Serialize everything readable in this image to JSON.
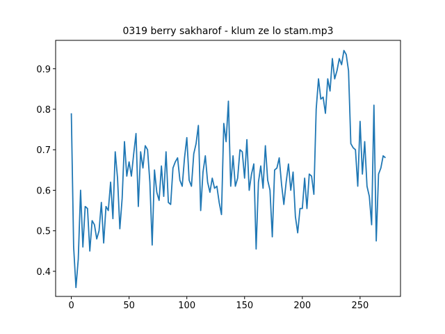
{
  "chart_data": {
    "type": "line",
    "title": "0319 berry sakharof - klum ze lo stam.mp3",
    "color": "#1f77b4",
    "x": [
      0,
      2,
      4,
      6,
      8,
      10,
      12,
      14,
      16,
      18,
      20,
      22,
      24,
      26,
      28,
      30,
      32,
      34,
      36,
      38,
      40,
      42,
      44,
      46,
      48,
      50,
      52,
      54,
      56,
      58,
      60,
      62,
      64,
      66,
      68,
      70,
      72,
      74,
      76,
      78,
      80,
      82,
      84,
      86,
      88,
      90,
      92,
      94,
      96,
      98,
      100,
      102,
      104,
      106,
      108,
      110,
      112,
      114,
      116,
      118,
      120,
      122,
      124,
      126,
      128,
      130,
      132,
      134,
      136,
      138,
      140,
      142,
      144,
      146,
      148,
      150,
      152,
      154,
      156,
      158,
      160,
      162,
      164,
      166,
      168,
      170,
      172,
      174,
      176,
      178,
      180,
      182,
      184,
      186,
      188,
      190,
      192,
      194,
      196,
      198,
      200,
      202,
      204,
      206,
      208,
      210,
      212,
      214,
      216,
      218,
      220,
      222,
      224,
      226,
      228,
      230,
      232,
      234,
      236,
      238,
      240,
      242,
      244,
      246,
      248,
      250,
      252,
      254,
      256,
      258,
      260,
      262,
      264,
      266,
      268,
      270,
      272
    ],
    "values": [
      0.79,
      0.46,
      0.36,
      0.43,
      0.6,
      0.46,
      0.56,
      0.555,
      0.45,
      0.525,
      0.515,
      0.48,
      0.5,
      0.57,
      0.47,
      0.56,
      0.55,
      0.62,
      0.53,
      0.695,
      0.63,
      0.505,
      0.58,
      0.72,
      0.635,
      0.67,
      0.635,
      0.69,
      0.74,
      0.56,
      0.695,
      0.655,
      0.71,
      0.7,
      0.62,
      0.465,
      0.65,
      0.595,
      0.575,
      0.66,
      0.585,
      0.695,
      0.57,
      0.565,
      0.655,
      0.67,
      0.68,
      0.625,
      0.61,
      0.68,
      0.73,
      0.625,
      0.61,
      0.69,
      0.715,
      0.76,
      0.55,
      0.645,
      0.685,
      0.62,
      0.595,
      0.63,
      0.605,
      0.61,
      0.57,
      0.54,
      0.765,
      0.72,
      0.82,
      0.61,
      0.685,
      0.61,
      0.63,
      0.7,
      0.695,
      0.63,
      0.725,
      0.6,
      0.64,
      0.665,
      0.455,
      0.62,
      0.66,
      0.605,
      0.71,
      0.625,
      0.6,
      0.485,
      0.65,
      0.655,
      0.68,
      0.615,
      0.565,
      0.62,
      0.665,
      0.6,
      0.645,
      0.535,
      0.495,
      0.555,
      0.555,
      0.63,
      0.555,
      0.64,
      0.635,
      0.59,
      0.8,
      0.875,
      0.825,
      0.83,
      0.79,
      0.875,
      0.845,
      0.925,
      0.875,
      0.895,
      0.925,
      0.91,
      0.945,
      0.935,
      0.895,
      0.715,
      0.705,
      0.7,
      0.61,
      0.77,
      0.64,
      0.72,
      0.61,
      0.585,
      0.515,
      0.81,
      0.475,
      0.64,
      0.655,
      0.685,
      0.68
    ],
    "xlim": [
      -13.6,
      285
    ],
    "xticks": [
      0,
      50,
      100,
      150,
      200,
      250
    ],
    "ylim": [
      0.338,
      0.97
    ],
    "yticks": [
      0.4,
      0.5,
      0.6,
      0.7,
      0.8,
      0.9
    ]
  }
}
